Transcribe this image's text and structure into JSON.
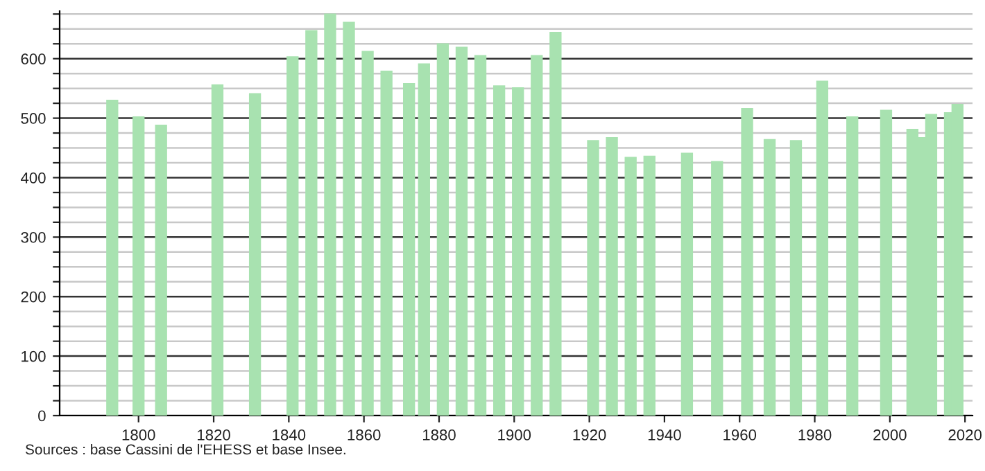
{
  "chart_data": {
    "type": "bar",
    "color": "#a8e2b0",
    "grid": "y",
    "x": [
      1793,
      1800,
      1806,
      1821,
      1831,
      1841,
      1846,
      1851,
      1856,
      1861,
      1866,
      1872,
      1876,
      1881,
      1886,
      1891,
      1896,
      1901,
      1906,
      1911,
      1921,
      1926,
      1931,
      1936,
      1946,
      1954,
      1962,
      1968,
      1975,
      1982,
      1990,
      1999,
      2006,
      2008,
      2011,
      2016,
      2018
    ],
    "values": [
      531,
      503,
      489,
      557,
      542,
      604,
      648,
      676,
      662,
      613,
      580,
      559,
      592,
      626,
      620,
      606,
      555,
      552,
      606,
      645,
      463,
      468,
      435,
      437,
      442,
      428,
      517,
      465,
      463,
      563,
      503,
      514,
      482,
      468,
      507,
      510,
      524
    ],
    "xlim": [
      1779,
      2022
    ],
    "xticks": [
      1800,
      1820,
      1840,
      1860,
      1880,
      1900,
      1920,
      1940,
      1960,
      1980,
      2000,
      2020
    ],
    "ylim": [
      0,
      680
    ],
    "yticks": [
      0,
      {
        "value": 25,
        "label": null
      },
      {
        "value": 50,
        "label": null
      },
      {
        "value": 75,
        "label": null
      },
      100,
      {
        "value": 125,
        "label": null
      },
      {
        "value": 150,
        "label": null
      },
      {
        "value": 175,
        "label": null
      },
      200,
      {
        "value": 225,
        "label": null
      },
      {
        "value": 250,
        "label": null
      },
      {
        "value": 275,
        "label": null
      },
      300,
      {
        "value": 325,
        "label": null
      },
      {
        "value": 350,
        "label": null
      },
      {
        "value": 375,
        "label": null
      },
      400,
      {
        "value": 425,
        "label": null
      },
      {
        "value": 450,
        "label": null
      },
      {
        "value": 475,
        "label": null
      },
      500,
      {
        "value": 525,
        "label": null
      },
      {
        "value": 550,
        "label": null
      },
      {
        "value": 575,
        "label": null
      },
      600,
      {
        "value": 625,
        "label": null
      },
      {
        "value": 650,
        "label": null
      },
      {
        "value": 675,
        "label": null
      }
    ],
    "annotations": [
      "Sources : base Cassini de l'EHESS et base Insee."
    ]
  }
}
